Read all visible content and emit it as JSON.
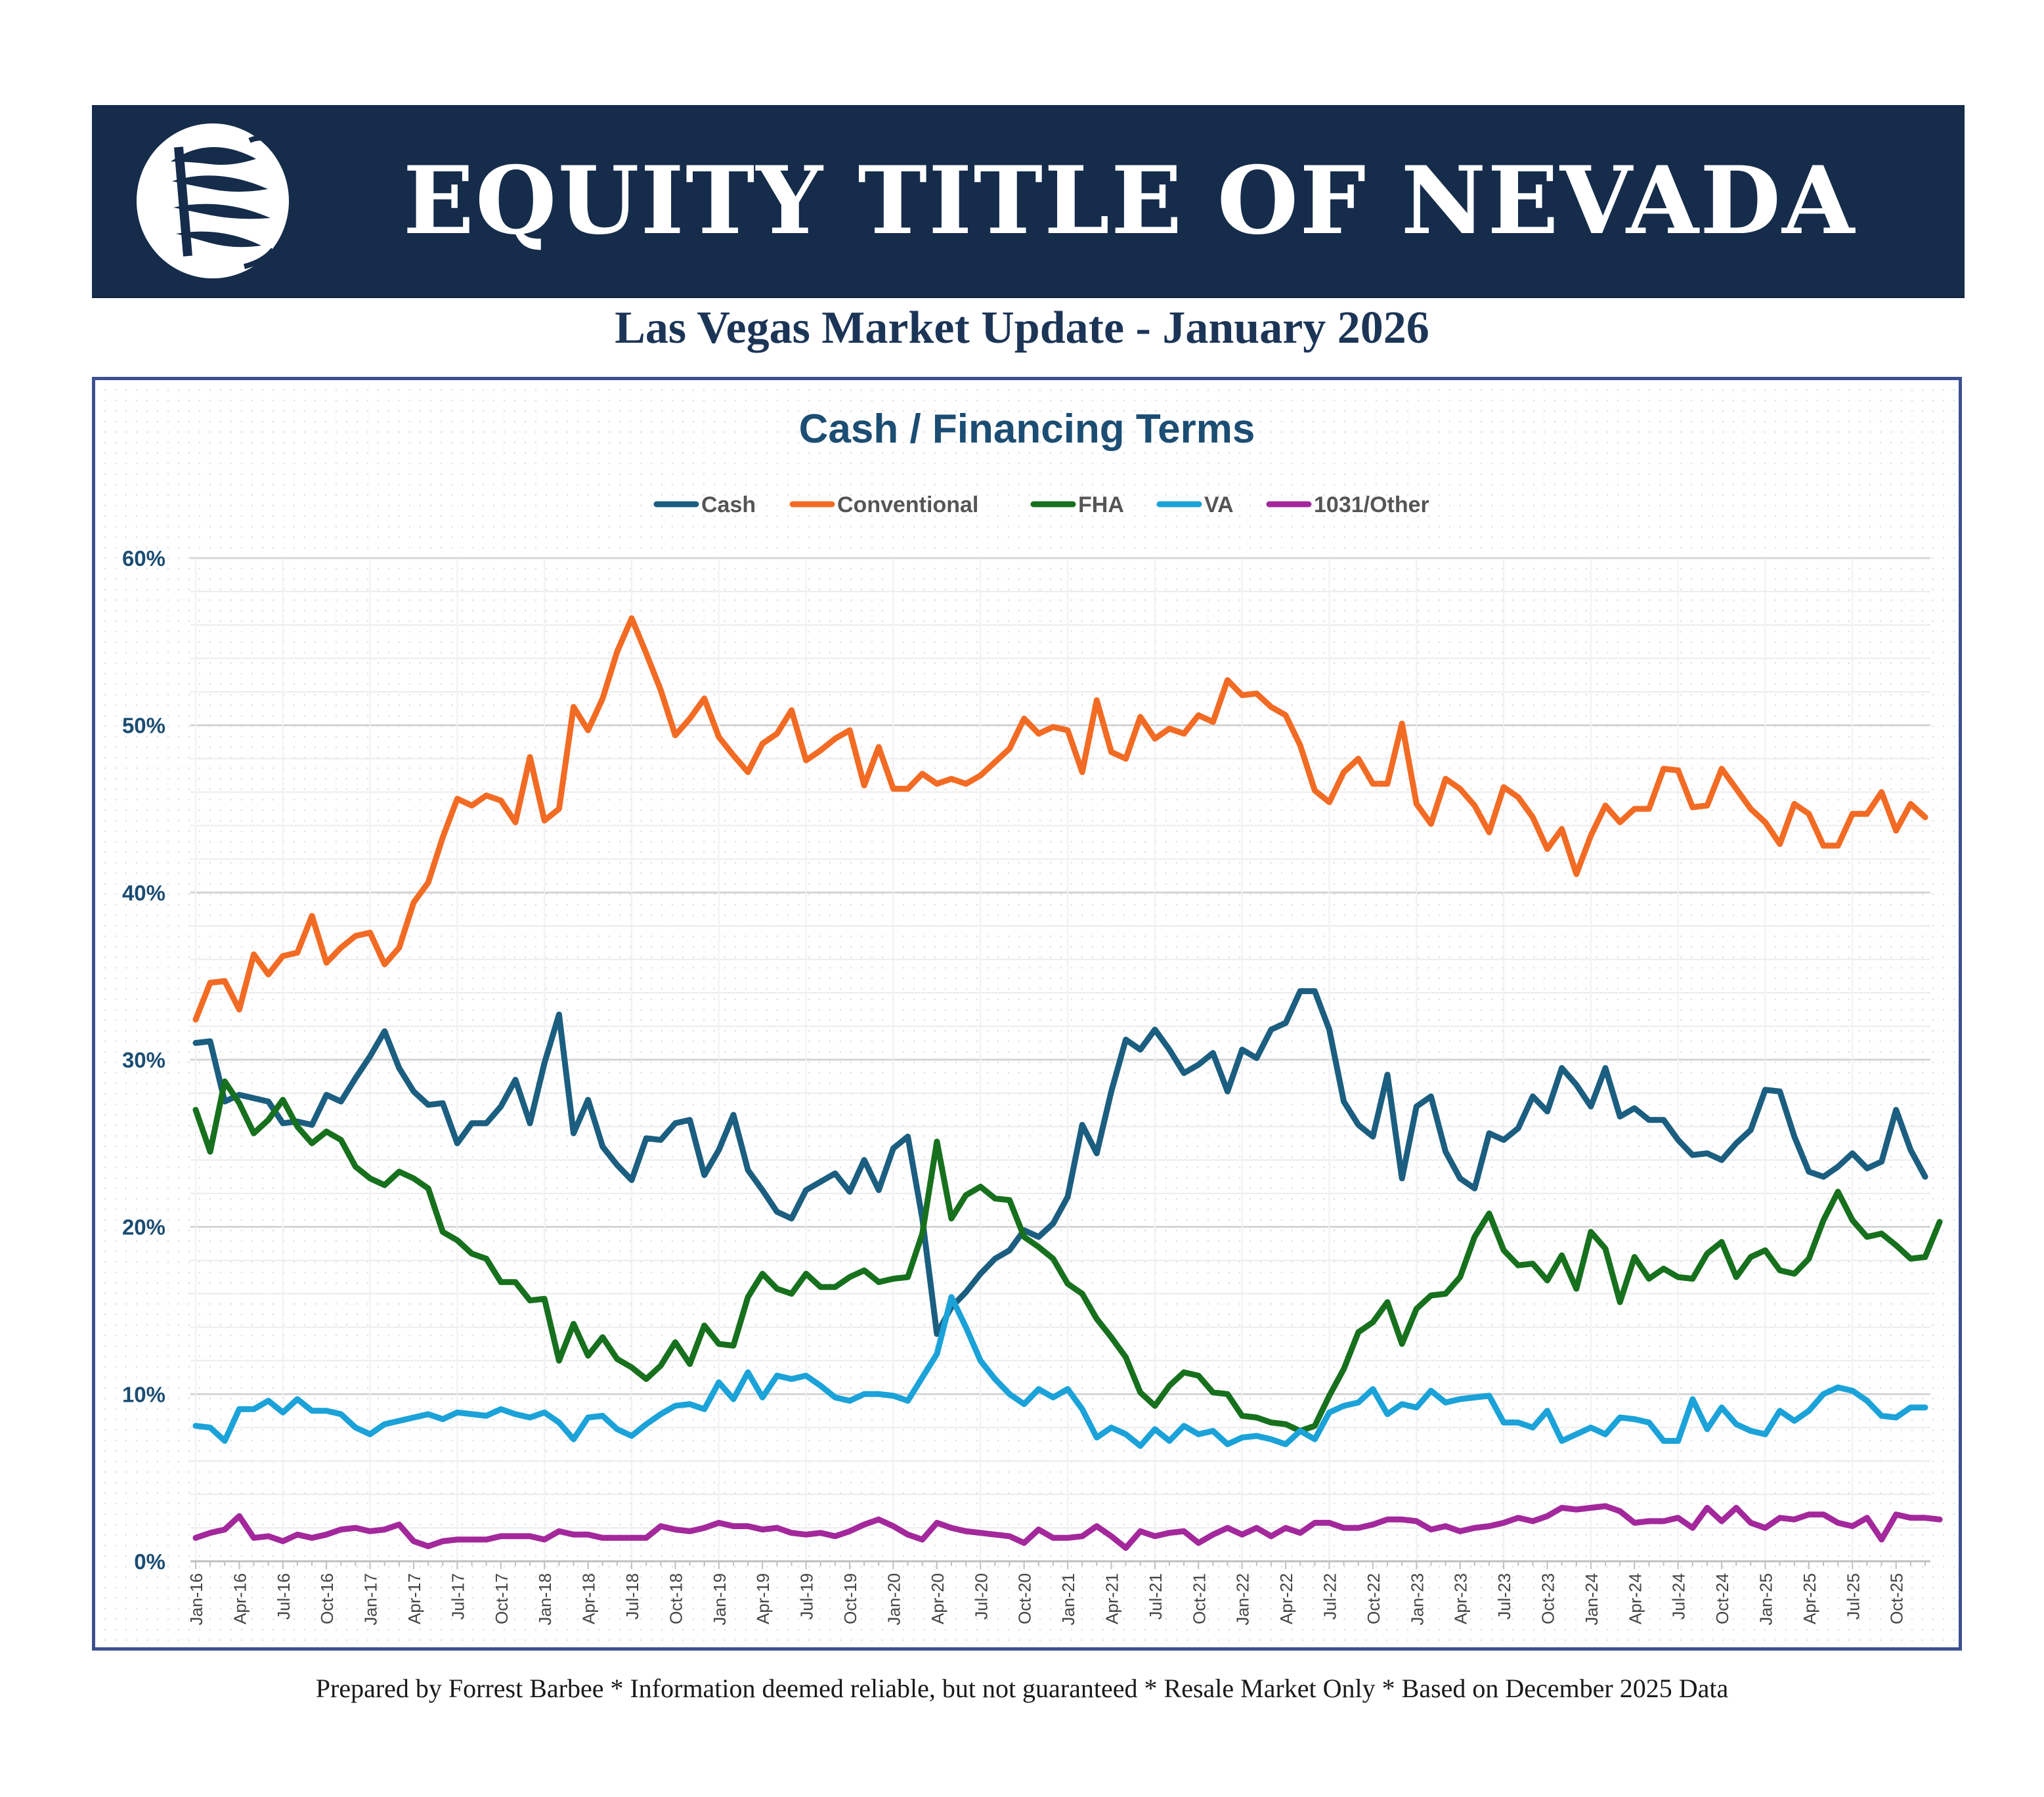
{
  "header": {
    "brand": "EQUITY TITLE OF NEVADA",
    "subtitle": "Las Vegas Market Update - January 2026",
    "logo_icon": "sail-globe-icon",
    "background_color": "#152c4b"
  },
  "footer": {
    "text": "Prepared by Forrest Barbee * Information deemed reliable, but not guaranteed * Resale Market Only * Based on December 2025 Data"
  },
  "chart_data": {
    "type": "line",
    "title": "Cash / Financing Terms",
    "xlabel": "",
    "ylabel": "",
    "ylim": [
      0,
      60
    ],
    "y_ticks": [
      0,
      10,
      20,
      30,
      40,
      50,
      60
    ],
    "y_tick_labels": [
      "0%",
      "10%",
      "20%",
      "30%",
      "40%",
      "50%",
      "60%"
    ],
    "x_tick_labels": [
      "Jan-16",
      "Apr-16",
      "Jul-16",
      "Oct-16",
      "Jan-17",
      "Apr-17",
      "Jul-17",
      "Oct-17",
      "Jan-18",
      "Apr-18",
      "Jul-18",
      "Oct-18",
      "Jan-19",
      "Apr-19",
      "Jul-19",
      "Oct-19",
      "Jan-20",
      "Apr-20",
      "Jul-20",
      "Oct-20",
      "Jan-21",
      "Apr-21",
      "Jul-21",
      "Oct-21",
      "Jan-22",
      "Apr-22",
      "Jul-22",
      "Oct-22",
      "Jan-23",
      "Apr-23",
      "Jul-23",
      "Oct-23",
      "Jan-24",
      "Apr-24",
      "Jul-24",
      "Oct-24",
      "Jan-25",
      "Apr-25",
      "Jul-25",
      "Oct-25"
    ],
    "x_start": "Jan-16",
    "months": 120,
    "legend_position": "top",
    "grid": true,
    "series": [
      {
        "name": "Cash",
        "color": "#1b5e80",
        "values": [
          31,
          31.1,
          27.5,
          27.9,
          27.7,
          27.5,
          26.2,
          26.3,
          26.1,
          27.9,
          27.5,
          28.9,
          30.2,
          31.7,
          29.5,
          28.1,
          27.3,
          27.4,
          25,
          26.2,
          26.2,
          27.2,
          28.8,
          26.2,
          29.8,
          32.7,
          25.6,
          27.6,
          24.8,
          23.7,
          22.8,
          25.3,
          25.2,
          26.2,
          26.4,
          23.1,
          24.6,
          26.7,
          23.4,
          22.2,
          20.9,
          20.5,
          22.2,
          22.7,
          23.2,
          22.1,
          24,
          22.2,
          24.7,
          25.4,
          20.5,
          13.6,
          15.2,
          16.1,
          17.2,
          18.1,
          18.6,
          19.8,
          19.4,
          20.2,
          21.8,
          26.1,
          24.4,
          28.1,
          31.2,
          30.6,
          31.8,
          30.6,
          29.2,
          29.7,
          30.4,
          28.1,
          30.6,
          30.1,
          31.8,
          32.2,
          34.1,
          34.1,
          31.8,
          27.5,
          26.1,
          25.4,
          29.1,
          22.9,
          27.2,
          27.8,
          24.5,
          22.9,
          22.3,
          25.6,
          25.2,
          25.9,
          27.8,
          26.9,
          29.5,
          28.5,
          27.2,
          29.5,
          26.6,
          27.1,
          26.4,
          26.4,
          25.2,
          24.3,
          24.4,
          24,
          25,
          25.8,
          28.2,
          28.1,
          25.4,
          23.3,
          23,
          23.6,
          24.4,
          23.5,
          23.9,
          27,
          24.6,
          23
        ]
      },
      {
        "name": "Conventional",
        "color": "#f26b24",
        "values": [
          32.4,
          34.6,
          34.7,
          33,
          36.3,
          35.1,
          36.2,
          36.4,
          38.6,
          35.8,
          36.7,
          37.4,
          37.6,
          35.7,
          36.7,
          39.4,
          40.6,
          43.3,
          45.6,
          45.2,
          45.8,
          45.5,
          44.2,
          48.1,
          44.3,
          45,
          51.1,
          49.7,
          51.6,
          54.4,
          56.4,
          54.3,
          52.1,
          49.4,
          50.4,
          51.6,
          49.3,
          48.2,
          47.2,
          48.9,
          49.5,
          50.9,
          47.9,
          48.5,
          49.2,
          49.7,
          46.4,
          48.7,
          46.2,
          46.2,
          47.1,
          46.5,
          46.8,
          46.5,
          47,
          47.8,
          48.6,
          50.4,
          49.5,
          49.9,
          49.7,
          47.2,
          51.5,
          48.4,
          48,
          50.5,
          49.2,
          49.8,
          49.5,
          50.6,
          50.2,
          52.7,
          51.8,
          51.9,
          51.1,
          50.6,
          48.8,
          46.1,
          45.4,
          47.2,
          48,
          46.5,
          46.5,
          50.1,
          45.3,
          44.1,
          46.8,
          46.2,
          45.2,
          43.6,
          46.3,
          45.7,
          44.5,
          42.6,
          43.8,
          41.1,
          43.4,
          45.2,
          44.2,
          45,
          45,
          47.4,
          47.3,
          45.1,
          45.2,
          47.4,
          46.2,
          45,
          44.2,
          42.9,
          45.3,
          44.7,
          42.8,
          42.8,
          44.7,
          44.7,
          46,
          43.7,
          45.3,
          44.5
        ]
      },
      {
        "name": "FHA",
        "color": "#17701d",
        "values": [
          27,
          24.5,
          28.7,
          27.4,
          25.6,
          26.4,
          27.6,
          26,
          25,
          25.7,
          25.2,
          23.6,
          22.9,
          22.5,
          23.3,
          22.9,
          22.3,
          19.7,
          19.2,
          18.4,
          18.1,
          16.7,
          16.7,
          15.6,
          15.7,
          12,
          14.2,
          12.3,
          13.4,
          12.1,
          11.6,
          10.9,
          11.7,
          13.1,
          11.8,
          14.1,
          13,
          12.9,
          15.8,
          17.2,
          16.3,
          16,
          17.2,
          16.4,
          16.4,
          17,
          17.4,
          16.7,
          16.9,
          17,
          19.6,
          25.1,
          20.5,
          21.9,
          22.4,
          21.7,
          21.6,
          19.4,
          18.8,
          18.1,
          16.6,
          16,
          14.5,
          13.4,
          12.2,
          10.1,
          9.3,
          10.5,
          11.3,
          11.1,
          10.1,
          10,
          8.7,
          8.6,
          8.3,
          8.2,
          7.8,
          8.1,
          9.9,
          11.5,
          13.7,
          14.3,
          15.5,
          13,
          15.1,
          15.9,
          16,
          17,
          19.4,
          20.8,
          18.6,
          17.7,
          17.8,
          16.8,
          18.3,
          16.3,
          19.7,
          18.7,
          15.5,
          18.2,
          16.9,
          17.5,
          17,
          16.9,
          18.4,
          19.1,
          17,
          18.2,
          18.6,
          17.4,
          17.2,
          18.1,
          20.4,
          22.1,
          20.4,
          19.4,
          19.6,
          18.9,
          18.1,
          18.2,
          20.3
        ]
      },
      {
        "name": "VA",
        "color": "#1ba2d8",
        "values": [
          8.1,
          8,
          7.2,
          9.1,
          9.1,
          9.6,
          8.9,
          9.7,
          9,
          9,
          8.8,
          8,
          7.6,
          8.2,
          8.4,
          8.6,
          8.8,
          8.5,
          8.9,
          8.8,
          8.7,
          9.1,
          8.8,
          8.6,
          8.9,
          8.3,
          7.3,
          8.6,
          8.7,
          7.9,
          7.5,
          8.2,
          8.8,
          9.3,
          9.4,
          9.1,
          10.7,
          9.7,
          11.3,
          9.8,
          11.1,
          10.9,
          11.1,
          10.5,
          9.8,
          9.6,
          10,
          10,
          9.9,
          9.6,
          11,
          12.4,
          15.8,
          14,
          12,
          10.9,
          10,
          9.4,
          10.3,
          9.8,
          10.3,
          9.1,
          7.4,
          8,
          7.6,
          6.9,
          7.9,
          7.2,
          8.1,
          7.6,
          7.8,
          7,
          7.4,
          7.5,
          7.3,
          7,
          7.8,
          7.3,
          8.9,
          9.3,
          9.5,
          10.3,
          8.8,
          9.4,
          9.2,
          10.2,
          9.5,
          9.7,
          9.8,
          9.9,
          8.3,
          8.3,
          8,
          9,
          7.2,
          7.6,
          8,
          7.6,
          8.6,
          8.5,
          8.3,
          7.2,
          7.2,
          9.7,
          7.9,
          9.2,
          8.2,
          7.8,
          7.6,
          9,
          8.4,
          9,
          10,
          10.4,
          10.2,
          9.6,
          8.7,
          8.6,
          9.2,
          9.2
        ]
      },
      {
        "name": "1031/Other",
        "color": "#a3289b",
        "values": [
          1.4,
          1.7,
          1.9,
          2.7,
          1.4,
          1.5,
          1.2,
          1.6,
          1.4,
          1.6,
          1.9,
          2,
          1.8,
          1.9,
          2.2,
          1.2,
          0.9,
          1.2,
          1.3,
          1.3,
          1.3,
          1.5,
          1.5,
          1.5,
          1.3,
          1.8,
          1.6,
          1.6,
          1.4,
          1.4,
          1.4,
          1.4,
          2.1,
          1.9,
          1.8,
          2,
          2.3,
          2.1,
          2.1,
          1.9,
          2,
          1.7,
          1.6,
          1.7,
          1.5,
          1.8,
          2.2,
          2.5,
          2.1,
          1.6,
          1.3,
          2.3,
          2,
          1.8,
          1.7,
          1.6,
          1.5,
          1.1,
          1.9,
          1.4,
          1.4,
          1.5,
          2.1,
          1.5,
          0.8,
          1.8,
          1.5,
          1.7,
          1.8,
          1.1,
          1.6,
          2,
          1.6,
          2,
          1.5,
          2,
          1.7,
          2.3,
          2.3,
          2,
          2,
          2.2,
          2.5,
          2.5,
          2.4,
          1.9,
          2.1,
          1.8,
          2,
          2.1,
          2.3,
          2.6,
          2.4,
          2.7,
          3.2,
          3.1,
          3.2,
          3.3,
          3,
          2.3,
          2.4,
          2.4,
          2.6,
          2,
          3.2,
          2.4,
          3.2,
          2.3,
          2,
          2.6,
          2.5,
          2.8,
          2.8,
          2.3,
          2.1,
          2.6,
          1.3,
          2.8,
          2.6,
          2.6,
          2.5
        ]
      }
    ]
  }
}
